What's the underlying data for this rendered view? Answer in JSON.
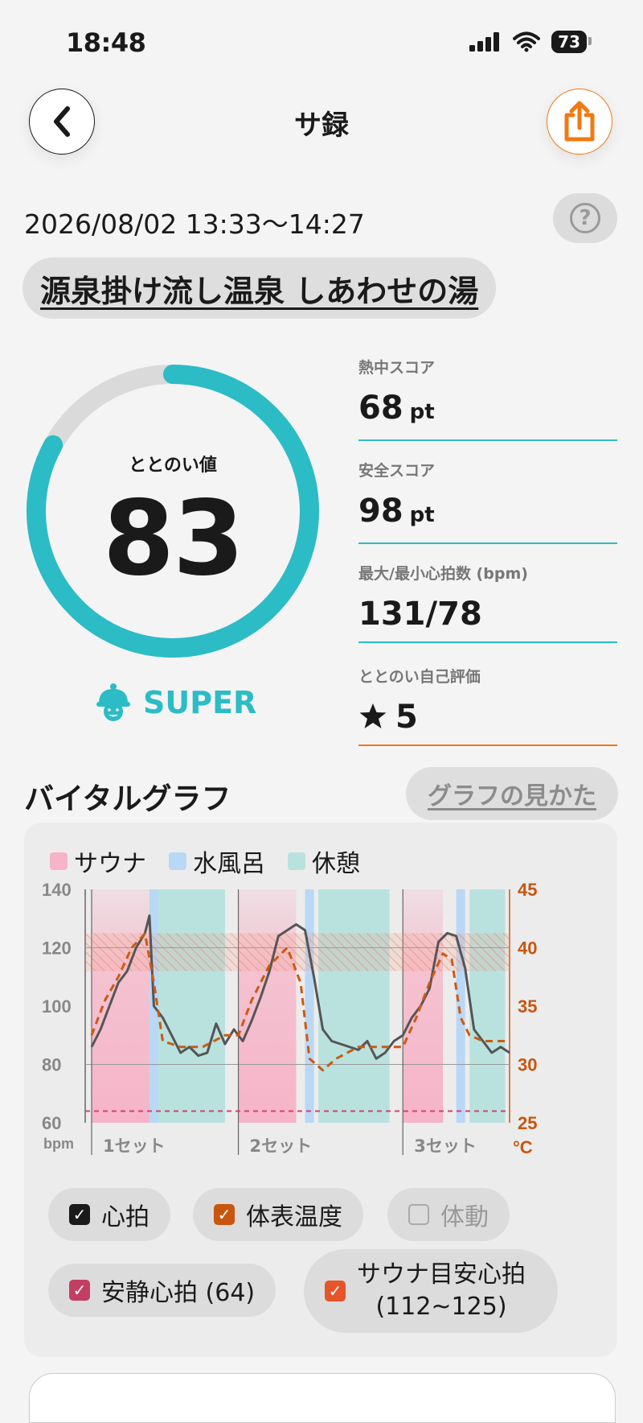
{
  "status_bar": {
    "time": "18:48",
    "battery": "73"
  },
  "header": {
    "title": "サ録"
  },
  "session": {
    "datetime": "2026/08/02 13:33～14:27",
    "help": "?",
    "facility": "源泉掛け流し温泉 しあわせの湯"
  },
  "score": {
    "label": "ととのい値",
    "value": "83",
    "progress": 0.83,
    "rank": "SUPER",
    "ring_color": "#2bbcc6"
  },
  "stats": [
    {
      "label": "熱中スコア",
      "value": "68",
      "unit": "pt"
    },
    {
      "label": "安全スコア",
      "value": "98",
      "unit": "pt"
    },
    {
      "label": "最大/最小心拍数 (bpm)",
      "value": "131/78",
      "unit": ""
    },
    {
      "label": "ととのい自己評価",
      "value": "5",
      "icon": "star-icon"
    }
  ],
  "vital": {
    "title": "バイタルグラフ",
    "howto": "グラフの見かた",
    "legend": [
      {
        "label": "サウナ",
        "color": "#f6b4c8"
      },
      {
        "label": "水風呂",
        "color": "#b9d8f5"
      },
      {
        "label": "休憩",
        "color": "#b9e2df"
      }
    ],
    "toggles": [
      {
        "label": "心拍",
        "checked": true
      },
      {
        "label": "体表温度",
        "checked": true
      },
      {
        "label": "体動",
        "checked": false
      },
      {
        "label": "安静心拍 (64)",
        "checked": true
      },
      {
        "label_line1": "サウナ目安心拍",
        "label_line2": "(112~125)",
        "checked": true
      }
    ]
  },
  "chart_data": {
    "type": "line",
    "y_left": {
      "label": "bpm",
      "ticks": [
        "140",
        "120",
        "100",
        "80",
        "60"
      ],
      "range": [
        60,
        140
      ]
    },
    "y_right": {
      "label": "°C",
      "ticks": [
        "45",
        "40",
        "35",
        "30",
        "25"
      ],
      "range": [
        25,
        45
      ]
    },
    "x_labels": [
      "1セット",
      "2セット",
      "3セット"
    ],
    "resting_hr": 64,
    "sauna_target_hr": [
      112,
      125
    ],
    "segments": [
      {
        "type": "sauna",
        "start": 0,
        "end": 13
      },
      {
        "type": "cold",
        "start": 13,
        "end": 15
      },
      {
        "type": "rest",
        "start": 15,
        "end": 30
      },
      {
        "type": "sauna",
        "start": 33,
        "end": 46
      },
      {
        "type": "cold",
        "start": 48,
        "end": 50
      },
      {
        "type": "rest",
        "start": 51,
        "end": 67
      },
      {
        "type": "sauna",
        "start": 70,
        "end": 79
      },
      {
        "type": "cold",
        "start": 82,
        "end": 84
      },
      {
        "type": "rest",
        "start": 85,
        "end": 93
      }
    ],
    "set_starts": [
      0,
      33,
      70
    ],
    "series": [
      {
        "name": "心拍",
        "color": "#555555",
        "x": [
          0,
          2,
          4,
          6,
          8,
          10,
          12,
          13,
          14,
          16,
          18,
          20,
          22,
          24,
          26,
          28,
          30,
          32,
          34,
          36,
          38,
          40,
          42,
          44,
          46,
          48,
          50,
          52,
          54,
          56,
          58,
          60,
          62,
          64,
          66,
          68,
          70,
          72,
          74,
          76,
          78,
          80,
          82,
          84,
          86,
          88,
          90,
          92,
          94
        ],
        "values": [
          86,
          92,
          100,
          108,
          112,
          120,
          125,
          131,
          100,
          96,
          90,
          84,
          86,
          83,
          84,
          94,
          87,
          92,
          88,
          95,
          103,
          112,
          124,
          126,
          128,
          126,
          110,
          92,
          88,
          87,
          86,
          85,
          88,
          82,
          84,
          88,
          90,
          96,
          100,
          106,
          122,
          125,
          124,
          113,
          92,
          88,
          84,
          86,
          84
        ]
      },
      {
        "name": "体表温度",
        "color": "#cc5a12",
        "x": [
          0,
          3,
          6,
          9,
          12,
          14,
          16,
          20,
          25,
          30,
          33,
          36,
          40,
          44,
          47,
          49,
          52,
          55,
          60,
          65,
          70,
          73,
          76,
          79,
          81,
          83,
          85,
          88,
          91,
          94
        ],
        "values": [
          32.5,
          35.5,
          37.5,
          40,
          41.2,
          37,
          32,
          31.5,
          31.5,
          32.5,
          32.5,
          35.5,
          38.5,
          40,
          37,
          30.5,
          29.5,
          30.5,
          31.5,
          31.5,
          31.5,
          34,
          37,
          39.5,
          39,
          34,
          32.5,
          32,
          32,
          32
        ]
      }
    ]
  }
}
